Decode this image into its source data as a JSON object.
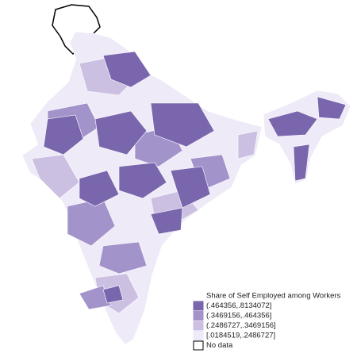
{
  "map": {
    "legend": {
      "title": "Share of Self Employed among Workers",
      "items": [
        {
          "label": "(.464356,.8134072]",
          "color": "#7a66ad"
        },
        {
          "label": "(.3469156,.464356]",
          "color": "#a393cb"
        },
        {
          "label": "(.2486727,.3469156]",
          "color": "#cbc0e2"
        },
        {
          "label": "[.0184519,.2486727]",
          "color": "#eeeaf7"
        },
        {
          "label": "No data",
          "color": "#ffffff"
        }
      ]
    }
  }
}
